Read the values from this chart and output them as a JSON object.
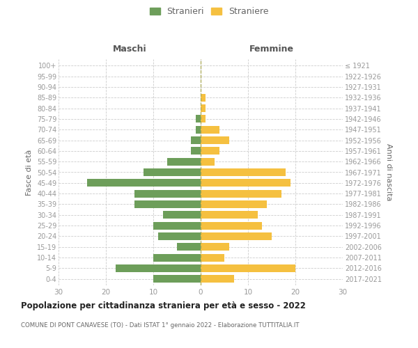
{
  "age_groups": [
    "0-4",
    "5-9",
    "10-14",
    "15-19",
    "20-24",
    "25-29",
    "30-34",
    "35-39",
    "40-44",
    "45-49",
    "50-54",
    "55-59",
    "60-64",
    "65-69",
    "70-74",
    "75-79",
    "80-84",
    "85-89",
    "90-94",
    "95-99",
    "100+"
  ],
  "birth_years": [
    "2017-2021",
    "2012-2016",
    "2007-2011",
    "2002-2006",
    "1997-2001",
    "1992-1996",
    "1987-1991",
    "1982-1986",
    "1977-1981",
    "1972-1976",
    "1967-1971",
    "1962-1966",
    "1957-1961",
    "1952-1956",
    "1947-1951",
    "1942-1946",
    "1937-1941",
    "1932-1936",
    "1927-1931",
    "1922-1926",
    "≤ 1921"
  ],
  "maschi": [
    10,
    18,
    10,
    5,
    9,
    10,
    8,
    14,
    14,
    24,
    12,
    7,
    2,
    2,
    1,
    1,
    0,
    0,
    0,
    0,
    0
  ],
  "femmine": [
    7,
    20,
    5,
    6,
    15,
    13,
    12,
    14,
    17,
    19,
    18,
    3,
    4,
    6,
    4,
    1,
    1,
    1,
    0,
    0,
    0
  ],
  "maschi_color": "#6d9e5a",
  "femmine_color": "#f5c040",
  "title": "Popolazione per cittadinanza straniera per età e sesso - 2022",
  "subtitle": "COMUNE DI PONT CANAVESE (TO) - Dati ISTAT 1° gennaio 2022 - Elaborazione TUTTITALIA.IT",
  "ylabel_left": "Fasce di età",
  "ylabel_right": "Anni di nascita",
  "header_left": "Maschi",
  "header_right": "Femmine",
  "legend_stranieri": "Stranieri",
  "legend_straniere": "Straniere",
  "xlim": 30,
  "bg_color": "#ffffff",
  "grid_color": "#cccccc",
  "axis_label_color": "#666666",
  "tick_label_color": "#999999",
  "header_color": "#555555",
  "title_color": "#222222",
  "subtitle_color": "#666666"
}
